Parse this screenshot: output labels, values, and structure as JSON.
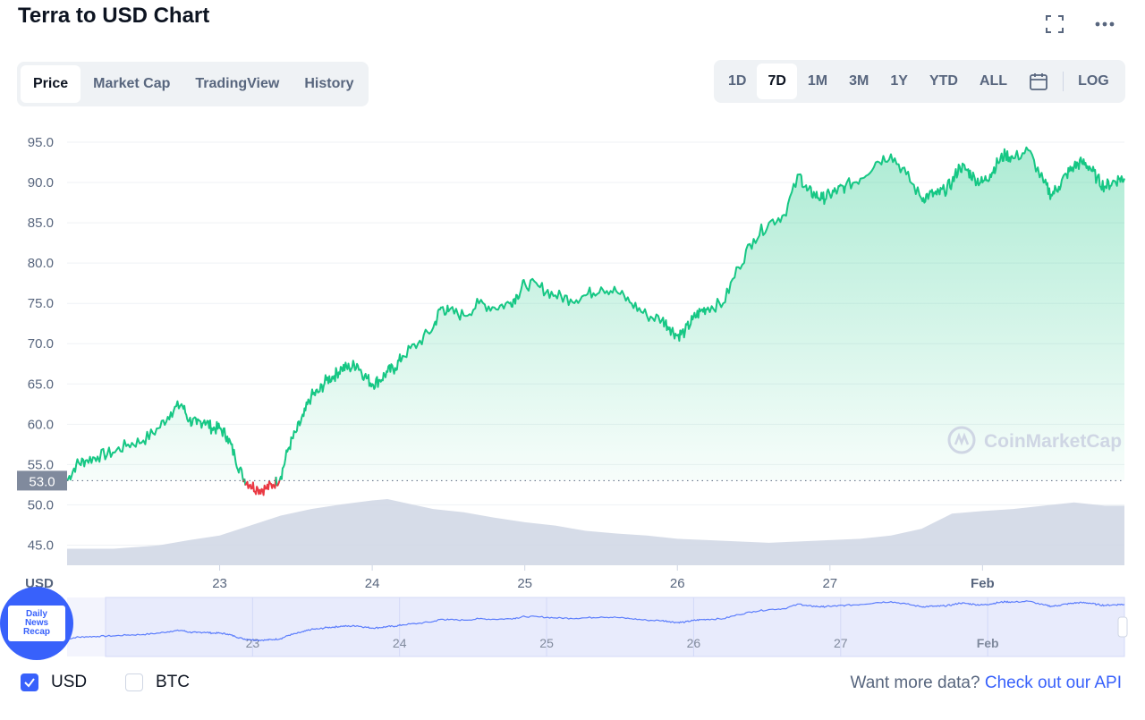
{
  "header": {
    "title": "Terra to USD Chart"
  },
  "top_icons": [
    "fullscreen-icon",
    "more-icon"
  ],
  "view_tabs": [
    {
      "label": "Price",
      "active": true
    },
    {
      "label": "Market Cap",
      "active": false
    },
    {
      "label": "TradingView",
      "active": false
    },
    {
      "label": "History",
      "active": false
    }
  ],
  "range_tabs": [
    {
      "label": "1D",
      "active": false
    },
    {
      "label": "7D",
      "active": true
    },
    {
      "label": "1M",
      "active": false
    },
    {
      "label": "3M",
      "active": false
    },
    {
      "label": "1Y",
      "active": false
    },
    {
      "label": "YTD",
      "active": false
    },
    {
      "label": "ALL",
      "active": false
    }
  ],
  "log_label": "LOG",
  "currency_label": "USD",
  "current_price_label": "53.0",
  "watermark": "CoinMarketCap",
  "footer": {
    "usd_label": "USD",
    "usd_checked": true,
    "btc_label": "BTC",
    "btc_checked": false,
    "api_prompt": "Want more data?",
    "api_link": "Check out our API"
  },
  "badge": {
    "text": "Daily\nNews\nRecap"
  },
  "colors": {
    "up": "#16c784",
    "down": "#ea3943",
    "accent": "#3861fb",
    "volume": "#cfd6e4",
    "navigator_fill": "#e8ebfc"
  },
  "chart_data": {
    "type": "area",
    "title": "Terra to USD Chart",
    "xlabel": "",
    "ylabel": "USD",
    "ylim": [
      42.5,
      96
    ],
    "yticks": [
      45.0,
      50.0,
      55.0,
      60.0,
      65.0,
      70.0,
      75.0,
      80.0,
      85.0,
      90.0,
      95.0
    ],
    "x_tick_labels": [
      {
        "label": "23",
        "x": 1.0
      },
      {
        "label": "24",
        "x": 2.0
      },
      {
        "label": "25",
        "x": 3.0
      },
      {
        "label": "26",
        "x": 4.0
      },
      {
        "label": "27",
        "x": 5.0
      },
      {
        "label": "Feb",
        "x": 6.0
      }
    ],
    "x_unit": "days from Jan 22",
    "xlim": [
      0,
      6.93
    ],
    "reference_price": 53.0,
    "grid": true,
    "series": [
      {
        "x": [
          0.0,
          0.06,
          0.12,
          0.2,
          0.3,
          0.4,
          0.5,
          0.6,
          0.68,
          0.75,
          0.8,
          0.85,
          0.9,
          0.95,
          1.0,
          1.05,
          1.1,
          1.15,
          1.2,
          1.25,
          1.3,
          1.35,
          1.4,
          1.45,
          1.5,
          1.55,
          1.6,
          1.65,
          1.7,
          1.75,
          1.8,
          1.85,
          1.9,
          1.95,
          2.0,
          2.05,
          2.1,
          2.15,
          2.2,
          2.3,
          2.4,
          2.45,
          2.5,
          2.6,
          2.7,
          2.8,
          2.9,
          2.95,
          3.0,
          3.1,
          3.2,
          3.3,
          3.4,
          3.5,
          3.6,
          3.7,
          3.8,
          3.9,
          3.95,
          4.0,
          4.05,
          4.1,
          4.15,
          4.2,
          4.3,
          4.4,
          4.5,
          4.6,
          4.7,
          4.8,
          4.85,
          4.9,
          4.95,
          5.0,
          5.05,
          5.1,
          5.2,
          5.3,
          5.4,
          5.5,
          5.6,
          5.65,
          5.7,
          5.75,
          5.8,
          5.85,
          5.9,
          5.95,
          6.0,
          6.05,
          6.1,
          6.15,
          6.2,
          6.3,
          6.4,
          6.45,
          6.5,
          6.55,
          6.6,
          6.65,
          6.7,
          6.75,
          6.8,
          6.85,
          6.9,
          6.93
        ],
        "y": [
          53.0,
          55.0,
          55.5,
          56.0,
          56.5,
          57.5,
          58.0,
          59.5,
          61.5,
          62.5,
          60.5,
          60.0,
          60.5,
          59.5,
          59.5,
          58.5,
          56.0,
          53.5,
          52.5,
          52.0,
          52.0,
          52.5,
          53.5,
          57.0,
          59.0,
          61.0,
          63.5,
          64.0,
          65.5,
          66.0,
          67.0,
          67.0,
          67.5,
          66.0,
          65.0,
          65.5,
          66.5,
          67.0,
          68.5,
          70.0,
          72.0,
          74.5,
          74.0,
          73.5,
          75.0,
          74.5,
          75.0,
          76.0,
          77.5,
          77.0,
          76.0,
          75.5,
          76.0,
          77.0,
          76.5,
          75.0,
          73.5,
          73.0,
          72.0,
          71.0,
          71.5,
          73.0,
          74.0,
          74.5,
          75.0,
          79.5,
          83.0,
          85.0,
          86.0,
          91.0,
          89.0,
          88.5,
          88.0,
          88.5,
          89.0,
          89.5,
          90.5,
          92.5,
          93.5,
          91.0,
          88.0,
          88.5,
          88.5,
          89.0,
          90.0,
          92.0,
          91.5,
          90.5,
          90.0,
          91.0,
          92.5,
          93.5,
          93.0,
          94.0,
          90.0,
          88.5,
          89.5,
          91.0,
          92.0,
          92.5,
          92.0,
          90.5,
          89.5,
          90.0,
          90.5,
          90.5
        ]
      },
      {
        "name": "volume",
        "x": [
          0.0,
          0.3,
          0.6,
          0.8,
          1.0,
          1.2,
          1.4,
          1.6,
          1.8,
          2.0,
          2.1,
          2.2,
          2.4,
          2.6,
          2.8,
          3.0,
          3.2,
          3.4,
          3.6,
          3.8,
          4.0,
          4.2,
          4.4,
          4.6,
          4.8,
          5.0,
          5.2,
          5.4,
          5.6,
          5.8,
          6.0,
          6.2,
          6.4,
          6.6,
          6.8,
          6.93
        ],
        "y": [
          0.25,
          0.25,
          0.3,
          0.38,
          0.45,
          0.6,
          0.75,
          0.85,
          0.92,
          0.98,
          1.0,
          0.95,
          0.85,
          0.8,
          0.72,
          0.65,
          0.6,
          0.52,
          0.48,
          0.45,
          0.4,
          0.38,
          0.36,
          0.34,
          0.36,
          0.38,
          0.4,
          0.45,
          0.55,
          0.78,
          0.82,
          0.85,
          0.9,
          0.95,
          0.9,
          0.9
        ]
      }
    ],
    "navigator": {
      "tick_labels": [
        {
          "label": "23",
          "x": 1.0
        },
        {
          "label": "24",
          "x": 2.0
        },
        {
          "label": "25",
          "x": 3.0
        },
        {
          "label": "26",
          "x": 4.0
        },
        {
          "label": "27",
          "x": 5.0
        },
        {
          "label": "Feb",
          "x": 6.0
        }
      ]
    }
  }
}
